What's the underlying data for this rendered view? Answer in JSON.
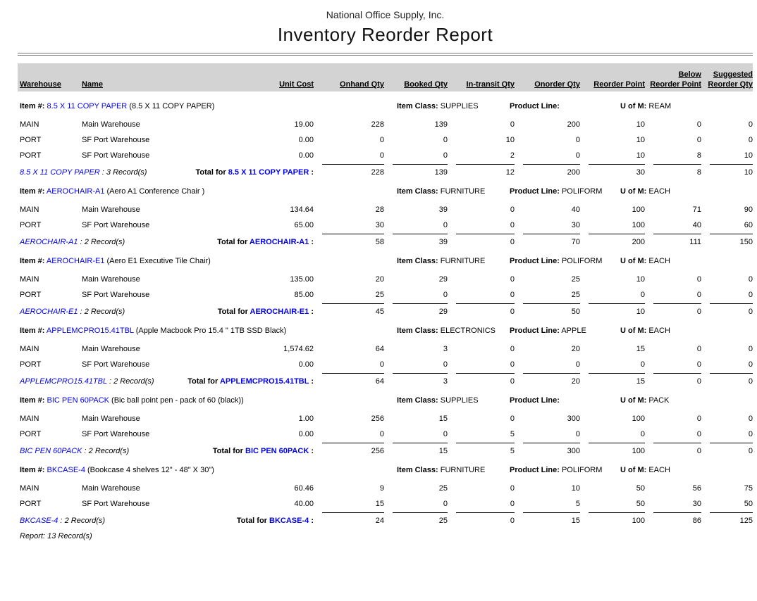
{
  "report": {
    "company": "National Office Supply, Inc.",
    "title": "Inventory Reorder Report",
    "footer": "Report: 13 Record(s)"
  },
  "colors": {
    "link_blue": "#0000ee",
    "header_bar_gray": "#d3d3d3"
  },
  "labels": {
    "item_prefix": "Item #:",
    "item_class": "Item Class:",
    "product_line": "Product Line:",
    "uom": "U of M:",
    "total_for": "Total for",
    "colon": ":",
    "sep": ":",
    "records_suffix": "Record(s)"
  },
  "table": {
    "columns": [
      {
        "top": "",
        "bottom": "Warehouse"
      },
      {
        "top": "",
        "bottom": "Name"
      },
      {
        "top": "",
        "bottom": "Unit Cost"
      },
      {
        "top": "",
        "bottom": "Onhand Qty"
      },
      {
        "top": "",
        "bottom": "Booked Qty"
      },
      {
        "top": "",
        "bottom": "In-transit Qty"
      },
      {
        "top": "",
        "bottom": "Onorder Qty"
      },
      {
        "top": "",
        "bottom": "Reorder Point"
      },
      {
        "top": "Below",
        "bottom": "Reorder Point"
      },
      {
        "top": "Suggested",
        "bottom": "Reorder Qty"
      }
    ]
  },
  "groups": [
    {
      "item_code": "8.5 X 11 COPY PAPER",
      "item_desc": "(8.5 X 11 COPY PAPER)",
      "item_class": "SUPPLIES",
      "product_line": "",
      "uom": "REAM",
      "record_count": "3",
      "rows": [
        {
          "warehouse": "MAIN",
          "name": "Main Warehouse",
          "unit_cost": "19.00",
          "onhand": "228",
          "booked": "139",
          "in_transit": "0",
          "onorder": "200",
          "reorder_point": "10",
          "below_reorder": "0",
          "suggested": "0"
        },
        {
          "warehouse": "PORT",
          "name": "SF Port Warehouse",
          "unit_cost": "0.00",
          "onhand": "0",
          "booked": "0",
          "in_transit": "10",
          "onorder": "0",
          "reorder_point": "10",
          "below_reorder": "0",
          "suggested": "0"
        },
        {
          "warehouse": "PORT",
          "name": "SF Port Warehouse",
          "unit_cost": "0.00",
          "onhand": "0",
          "booked": "0",
          "in_transit": "2",
          "onorder": "0",
          "reorder_point": "10",
          "below_reorder": "8",
          "suggested": "10"
        }
      ],
      "totals": {
        "onhand": "228",
        "booked": "139",
        "in_transit": "12",
        "onorder": "200",
        "reorder_point": "30",
        "below_reorder": "8",
        "suggested": "10"
      }
    },
    {
      "item_code": "AEROCHAIR-A1",
      "item_desc": "(Aero A1 Conference Chair )",
      "item_class": "FURNITURE",
      "product_line": "POLIFORM",
      "uom": "EACH",
      "record_count": "2",
      "rows": [
        {
          "warehouse": "MAIN",
          "name": "Main Warehouse",
          "unit_cost": "134.64",
          "onhand": "28",
          "booked": "39",
          "in_transit": "0",
          "onorder": "40",
          "reorder_point": "100",
          "below_reorder": "71",
          "suggested": "90"
        },
        {
          "warehouse": "PORT",
          "name": "SF Port Warehouse",
          "unit_cost": "65.00",
          "onhand": "30",
          "booked": "0",
          "in_transit": "0",
          "onorder": "30",
          "reorder_point": "100",
          "below_reorder": "40",
          "suggested": "60"
        }
      ],
      "totals": {
        "onhand": "58",
        "booked": "39",
        "in_transit": "0",
        "onorder": "70",
        "reorder_point": "200",
        "below_reorder": "111",
        "suggested": "150"
      }
    },
    {
      "item_code": "AEROCHAIR-E1",
      "item_desc": "(Aero E1 Executive Tile Chair)",
      "item_class": "FURNITURE",
      "product_line": "POLIFORM",
      "uom": "EACH",
      "record_count": "2",
      "rows": [
        {
          "warehouse": "MAIN",
          "name": "Main Warehouse",
          "unit_cost": "135.00",
          "onhand": "20",
          "booked": "29",
          "in_transit": "0",
          "onorder": "25",
          "reorder_point": "10",
          "below_reorder": "0",
          "suggested": "0"
        },
        {
          "warehouse": "PORT",
          "name": "SF Port Warehouse",
          "unit_cost": "85.00",
          "onhand": "25",
          "booked": "0",
          "in_transit": "0",
          "onorder": "25",
          "reorder_point": "0",
          "below_reorder": "0",
          "suggested": "0"
        }
      ],
      "totals": {
        "onhand": "45",
        "booked": "29",
        "in_transit": "0",
        "onorder": "50",
        "reorder_point": "10",
        "below_reorder": "0",
        "suggested": "0"
      }
    },
    {
      "item_code": "APPLEMCPRO15.41TBL",
      "item_desc": "(Apple Macbook Pro 15.4 \" 1TB SSD Black)",
      "item_class": "ELECTRONICS",
      "product_line": "APPLE",
      "uom": "EACH",
      "record_count": "2",
      "rows": [
        {
          "warehouse": "MAIN",
          "name": "Main Warehouse",
          "unit_cost": "1,574.62",
          "onhand": "64",
          "booked": "3",
          "in_transit": "0",
          "onorder": "20",
          "reorder_point": "15",
          "below_reorder": "0",
          "suggested": "0"
        },
        {
          "warehouse": "PORT",
          "name": "SF Port Warehouse",
          "unit_cost": "0.00",
          "onhand": "0",
          "booked": "0",
          "in_transit": "0",
          "onorder": "0",
          "reorder_point": "0",
          "below_reorder": "0",
          "suggested": "0"
        }
      ],
      "totals": {
        "onhand": "64",
        "booked": "3",
        "in_transit": "0",
        "onorder": "20",
        "reorder_point": "15",
        "below_reorder": "0",
        "suggested": "0"
      }
    },
    {
      "item_code": "BIC PEN 60PACK",
      "item_desc": "(Bic ball point pen - pack of 60 (black))",
      "item_class": "SUPPLIES",
      "product_line": "",
      "uom": "PACK",
      "record_count": "2",
      "rows": [
        {
          "warehouse": "MAIN",
          "name": "Main Warehouse",
          "unit_cost": "1.00",
          "onhand": "256",
          "booked": "15",
          "in_transit": "0",
          "onorder": "300",
          "reorder_point": "100",
          "below_reorder": "0",
          "suggested": "0"
        },
        {
          "warehouse": "PORT",
          "name": "SF Port Warehouse",
          "unit_cost": "0.00",
          "onhand": "0",
          "booked": "0",
          "in_transit": "5",
          "onorder": "0",
          "reorder_point": "0",
          "below_reorder": "0",
          "suggested": "0"
        }
      ],
      "totals": {
        "onhand": "256",
        "booked": "15",
        "in_transit": "5",
        "onorder": "300",
        "reorder_point": "100",
        "below_reorder": "0",
        "suggested": "0"
      }
    },
    {
      "item_code": "BKCASE-4",
      "item_desc": "(Bookcase 4 shelves 12\" - 48\" X 30\")",
      "item_class": "FURNITURE",
      "product_line": "POLIFORM",
      "uom": "EACH",
      "record_count": "2",
      "rows": [
        {
          "warehouse": "MAIN",
          "name": "Main Warehouse",
          "unit_cost": "60.46",
          "onhand": "9",
          "booked": "25",
          "in_transit": "0",
          "onorder": "10",
          "reorder_point": "50",
          "below_reorder": "56",
          "suggested": "75"
        },
        {
          "warehouse": "PORT",
          "name": "SF Port Warehouse",
          "unit_cost": "40.00",
          "onhand": "15",
          "booked": "0",
          "in_transit": "0",
          "onorder": "5",
          "reorder_point": "50",
          "below_reorder": "30",
          "suggested": "50"
        }
      ],
      "totals": {
        "onhand": "24",
        "booked": "25",
        "in_transit": "0",
        "onorder": "15",
        "reorder_point": "100",
        "below_reorder": "86",
        "suggested": "125"
      }
    }
  ]
}
